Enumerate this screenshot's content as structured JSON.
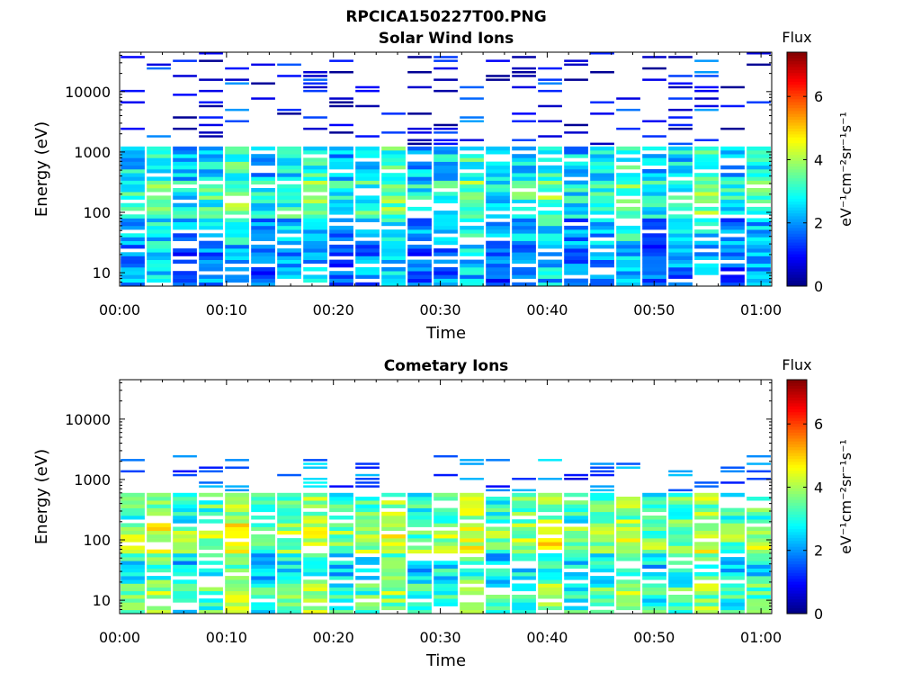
{
  "figure": {
    "title": "RPCICA150227T00.PNG"
  },
  "chart_data": [
    {
      "type": "heatmap",
      "title": "Solar Wind Ions",
      "xlabel": "Time",
      "ylabel": "Energy (eV)",
      "x_range": [
        "00:00",
        "01:01"
      ],
      "y_range": [
        6,
        45000
      ],
      "y_scale": "log",
      "x_ticks": [
        "00:00",
        "00:10",
        "00:20",
        "00:30",
        "00:40",
        "00:50",
        "01:00"
      ],
      "y_ticks": [
        "10",
        "100",
        "1000",
        "10000"
      ],
      "grid": false,
      "colorbar": {
        "title": "Flux",
        "label": "eV⁻¹cm⁻²sr⁻¹s⁻¹",
        "range": [
          0,
          7.4
        ],
        "ticks": [
          "0",
          "2",
          "4",
          "6"
        ],
        "colormap": "jet"
      },
      "energy_bands": [
        {
          "from": 6,
          "to": 30,
          "level": 1.9
        },
        {
          "from": 30,
          "to": 80,
          "level": 2.2
        },
        {
          "from": 80,
          "to": 350,
          "level": 3.1
        },
        {
          "from": 350,
          "to": 1300,
          "level": 2.6
        },
        {
          "from": 1300,
          "to": 45000,
          "level": 0.8
        }
      ]
    },
    {
      "type": "heatmap",
      "title": "Cometary Ions",
      "xlabel": "Time",
      "ylabel": "Energy (eV)",
      "x_range": [
        "00:00",
        "01:01"
      ],
      "y_range": [
        6,
        45000
      ],
      "y_scale": "log",
      "x_ticks": [
        "00:00",
        "00:10",
        "00:20",
        "00:30",
        "00:40",
        "00:50",
        "01:00"
      ],
      "y_ticks": [
        "10",
        "100",
        "1000",
        "10000"
      ],
      "grid": false,
      "colorbar": {
        "title": "Flux",
        "label": "eV⁻¹cm⁻²sr⁻¹s⁻¹",
        "range": [
          0,
          7.4
        ],
        "ticks": [
          "0",
          "2",
          "4",
          "6"
        ],
        "colormap": "jet"
      },
      "energy_bands": [
        {
          "from": 6,
          "to": 20,
          "level": 3.3
        },
        {
          "from": 20,
          "to": 60,
          "level": 2.8
        },
        {
          "from": 60,
          "to": 200,
          "level": 3.9
        },
        {
          "from": 200,
          "to": 600,
          "level": 3.3
        },
        {
          "from": 600,
          "to": 2500,
          "level": 1.6
        }
      ]
    }
  ]
}
